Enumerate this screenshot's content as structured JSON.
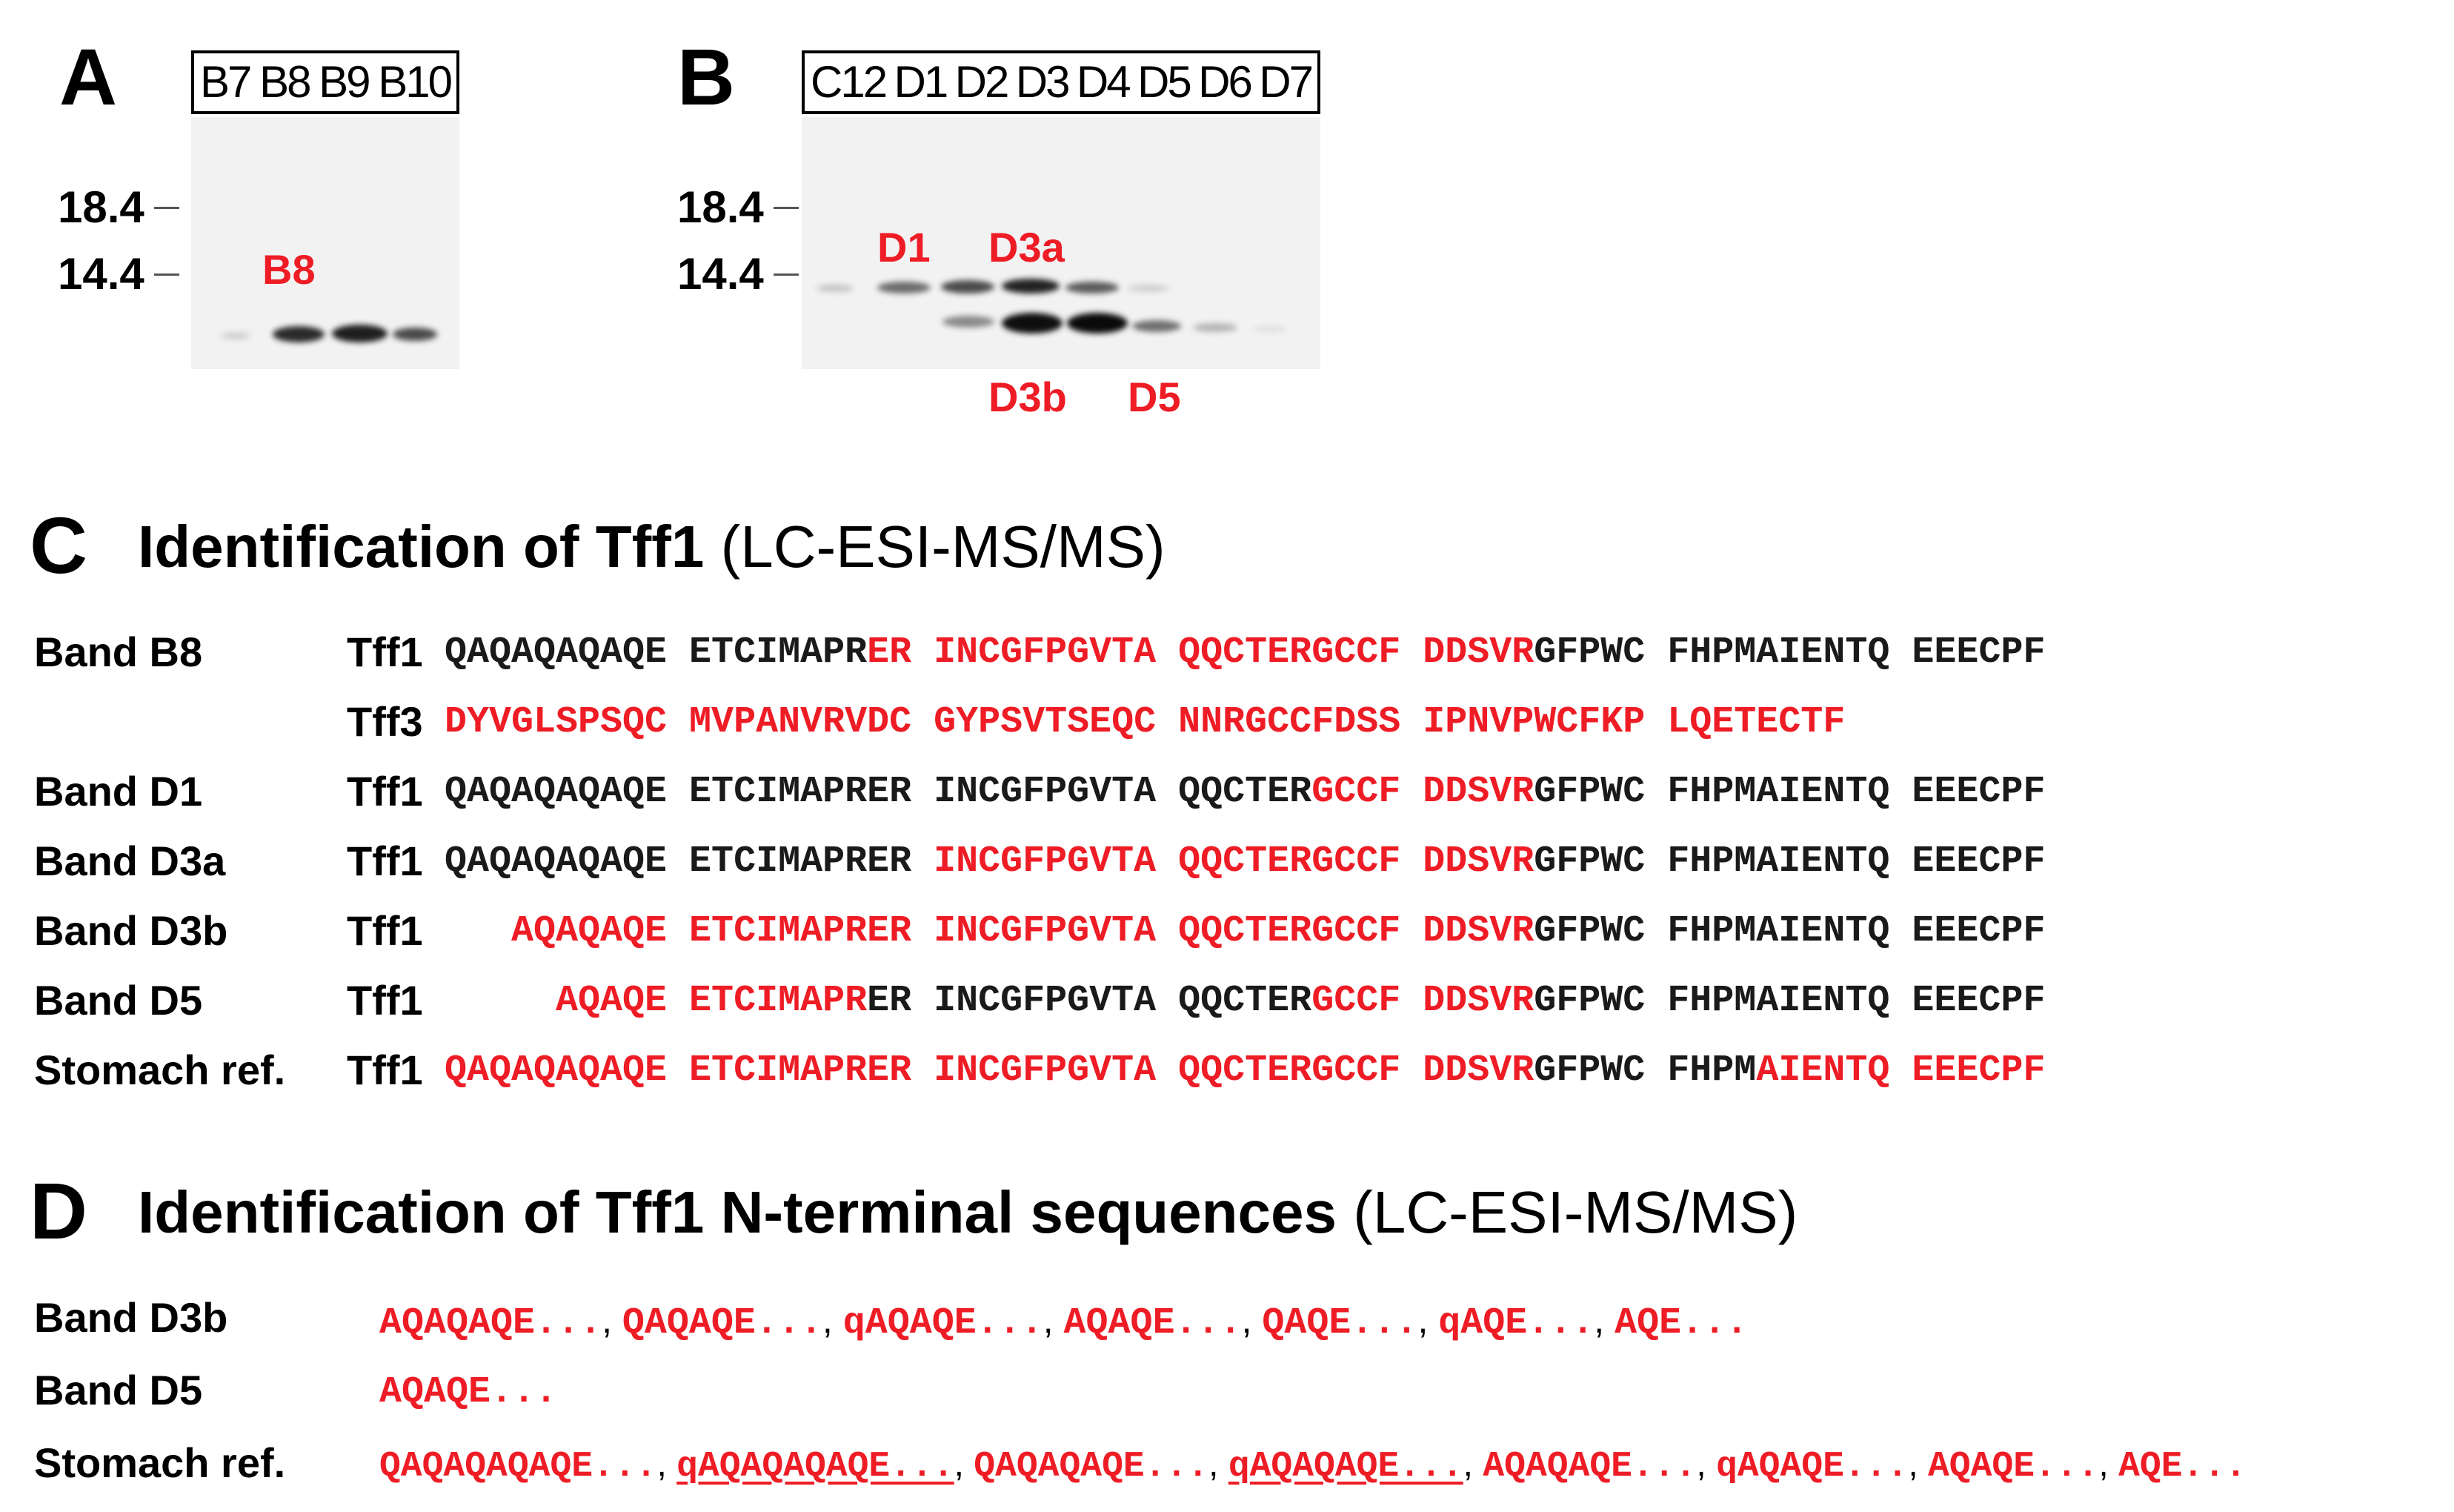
{
  "panelA": {
    "letter": "A",
    "lanes": [
      "B7",
      "B8",
      "B9",
      "B10"
    ],
    "mw_markers": [
      "18.4",
      "14.4"
    ],
    "band_labels": [
      "B8"
    ]
  },
  "panelB": {
    "letter": "B",
    "lanes": [
      "C12",
      "D1",
      "D2",
      "D3",
      "D4",
      "D5",
      "D6",
      "D7"
    ],
    "mw_markers": [
      "18.4",
      "14.4"
    ],
    "band_labels": [
      "D1",
      "D3a",
      "D3b",
      "D5"
    ]
  },
  "panelC": {
    "letter": "C",
    "title_bold": "Identification of Tff1",
    "title_normal": " (LC-ESI-MS/MS)",
    "rows": [
      {
        "band": "Band B8",
        "protein": "Tff1",
        "segments": [
          {
            "t": "QAQAQAQAQE ETCIMAPR",
            "c": "black"
          },
          {
            "t": "ER INCGFPGVTA QQCTERGCCF DDSVR",
            "c": "red"
          },
          {
            "t": "GFPWC FHPMAIENTQ EEECPF",
            "c": "black"
          }
        ]
      },
      {
        "band": "",
        "protein": "Tff3",
        "segments": [
          {
            "t": "DYVGLSPSQC MVPANVRVDC GYPSVTSEQC NNRGCCFDSS IPNVPWCFKP LQETECTF",
            "c": "red"
          }
        ]
      },
      {
        "band": "Band D1",
        "protein": "Tff1",
        "segments": [
          {
            "t": "QAQAQAQAQE ETCIMAPRER INCGFPGVTA QQCTER",
            "c": "black"
          },
          {
            "t": "GCCF DDSVR",
            "c": "red"
          },
          {
            "t": "GFPWC FHPMAIENTQ EEECPF",
            "c": "black"
          }
        ]
      },
      {
        "band": "Band D3a",
        "protein": "Tff1",
        "segments": [
          {
            "t": "QAQAQAQAQE ETCIMAPRER ",
            "c": "black"
          },
          {
            "t": "INCGFPGVTA QQCTERGCCF DDSVR",
            "c": "red"
          },
          {
            "t": "GFPWC FHPMAIENTQ EEECPF",
            "c": "black"
          }
        ]
      },
      {
        "band": "Band D3b",
        "protein": "Tff1",
        "segments": [
          {
            "t": "   AQAQAQE ETCIMAPRER INCGFPGVTA QQCTERGCCF DDSVR",
            "c": "red"
          },
          {
            "t": "GFPWC FHPMAIENTQ EEECPF",
            "c": "black"
          }
        ]
      },
      {
        "band": "Band D5",
        "protein": "Tff1",
        "segments": [
          {
            "t": "     AQAQE ETCIMAPR",
            "c": "red"
          },
          {
            "t": "ER INCGFPGVTA QQCTER",
            "c": "black"
          },
          {
            "t": "GCCF DDSVR",
            "c": "red"
          },
          {
            "t": "GFPWC FHPMAIENTQ EEECPF",
            "c": "black"
          }
        ]
      },
      {
        "band": "Stomach ref.",
        "protein": "Tff1",
        "segments": [
          {
            "t": "QAQAQAQAQE ETCIMAPRER INCGFPGVTA QQCTERGCCF DDSVR",
            "c": "red"
          },
          {
            "t": "GFPWC FHPM",
            "c": "black"
          },
          {
            "t": "AIENTQ EEECPF",
            "c": "red"
          }
        ]
      }
    ]
  },
  "panelD": {
    "letter": "D",
    "title_bold": "Identification of Tff1 N-terminal sequences",
    "title_normal": " (LC-ESI-MS/MS)",
    "rows": [
      {
        "band": "Band D3b",
        "items": [
          {
            "t": "AQAQAQE...",
            "u": false
          },
          {
            "t": "QAQAQE...",
            "u": false
          },
          {
            "t": "qAQAQE...",
            "u": false
          },
          {
            "t": "AQAQE...",
            "u": false
          },
          {
            "t": "QAQE...",
            "u": false
          },
          {
            "t": "qAQE...",
            "u": false
          },
          {
            "t": "AQE...",
            "u": false
          }
        ]
      },
      {
        "band": "Band D5",
        "items": [
          {
            "t": "AQAQE...",
            "u": false
          }
        ]
      },
      {
        "band": "Stomach ref.",
        "items": [
          {
            "t": "QAQAQAQAQE...",
            "u": false
          },
          {
            "t": "qAQAQAQAQE...",
            "u": true
          },
          {
            "t": "QAQAQAQE...",
            "u": false
          },
          {
            "t": "qAQAQAQE...",
            "u": true
          },
          {
            "t": "AQAQAQE...",
            "u": false
          },
          {
            "t": "qAQAQE...",
            "u": false
          },
          {
            "t": "AQAQE...",
            "u": false
          },
          {
            "t": "AQE...",
            "u": false
          }
        ]
      }
    ],
    "separator": ", "
  }
}
